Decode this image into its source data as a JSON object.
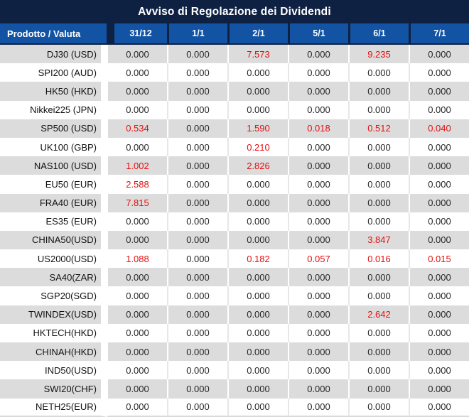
{
  "title": "Avviso di Regolazione dei Dividendi",
  "table": {
    "product_header": "Prodotto / Valuta",
    "date_headers": [
      "31/12",
      "1/1",
      "2/1",
      "5/1",
      "6/1",
      "7/1"
    ],
    "rows": [
      {
        "product": "DJ30 (USD)",
        "values": [
          "0.000",
          "0.000",
          "7.573",
          "0.000",
          "9.235",
          "0.000"
        ]
      },
      {
        "product": "SPI200 (AUD)",
        "values": [
          "0.000",
          "0.000",
          "0.000",
          "0.000",
          "0.000",
          "0.000"
        ]
      },
      {
        "product": "HK50 (HKD)",
        "values": [
          "0.000",
          "0.000",
          "0.000",
          "0.000",
          "0.000",
          "0.000"
        ]
      },
      {
        "product": "Nikkei225 (JPN)",
        "values": [
          "0.000",
          "0.000",
          "0.000",
          "0.000",
          "0.000",
          "0.000"
        ]
      },
      {
        "product": "SP500 (USD)",
        "values": [
          "0.534",
          "0.000",
          "1.590",
          "0.018",
          "0.512",
          "0.040"
        ]
      },
      {
        "product": "UK100 (GBP)",
        "values": [
          "0.000",
          "0.000",
          "0.210",
          "0.000",
          "0.000",
          "0.000"
        ]
      },
      {
        "product": "NAS100 (USD)",
        "values": [
          "1.002",
          "0.000",
          "2.826",
          "0.000",
          "0.000",
          "0.000"
        ]
      },
      {
        "product": "EU50 (EUR)",
        "values": [
          "2.588",
          "0.000",
          "0.000",
          "0.000",
          "0.000",
          "0.000"
        ]
      },
      {
        "product": "FRA40 (EUR)",
        "values": [
          "7.815",
          "0.000",
          "0.000",
          "0.000",
          "0.000",
          "0.000"
        ]
      },
      {
        "product": "ES35 (EUR)",
        "values": [
          "0.000",
          "0.000",
          "0.000",
          "0.000",
          "0.000",
          "0.000"
        ]
      },
      {
        "product": "CHINA50(USD)",
        "values": [
          "0.000",
          "0.000",
          "0.000",
          "0.000",
          "3.847",
          "0.000"
        ]
      },
      {
        "product": "US2000(USD)",
        "values": [
          "1.088",
          "0.000",
          "0.182",
          "0.057",
          "0.016",
          "0.015"
        ]
      },
      {
        "product": "SA40(ZAR)",
        "values": [
          "0.000",
          "0.000",
          "0.000",
          "0.000",
          "0.000",
          "0.000"
        ]
      },
      {
        "product": "SGP20(SGD)",
        "values": [
          "0.000",
          "0.000",
          "0.000",
          "0.000",
          "0.000",
          "0.000"
        ]
      },
      {
        "product": "TWINDEX(USD)",
        "values": [
          "0.000",
          "0.000",
          "0.000",
          "0.000",
          "2.642",
          "0.000"
        ]
      },
      {
        "product": "HKTECH(HKD)",
        "values": [
          "0.000",
          "0.000",
          "0.000",
          "0.000",
          "0.000",
          "0.000"
        ]
      },
      {
        "product": "CHINAH(HKD)",
        "values": [
          "0.000",
          "0.000",
          "0.000",
          "0.000",
          "0.000",
          "0.000"
        ]
      },
      {
        "product": "IND50(USD)",
        "values": [
          "0.000",
          "0.000",
          "0.000",
          "0.000",
          "0.000",
          "0.000"
        ]
      },
      {
        "product": "SWI20(CHF)",
        "values": [
          "0.000",
          "0.000",
          "0.000",
          "0.000",
          "0.000",
          "0.000"
        ]
      },
      {
        "product": "NETH25(EUR)",
        "values": [
          "0.000",
          "0.000",
          "0.000",
          "0.000",
          "0.000",
          "0.000"
        ]
      }
    ]
  },
  "colors": {
    "title_bar_bg": "#0e2142",
    "header_bg": "#1253a4",
    "row_alt_bg": "#dcdcdc",
    "zero_text": "#262626",
    "dividend_text": "#e60f0f"
  }
}
